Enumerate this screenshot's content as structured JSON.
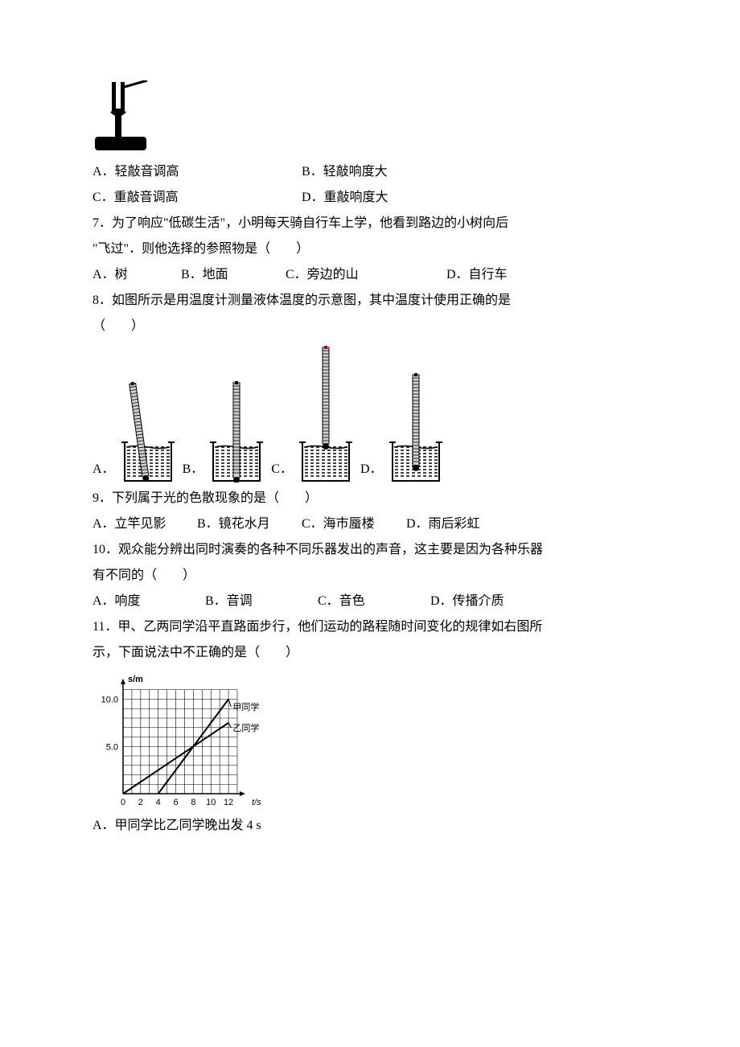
{
  "q6": {
    "options": {
      "a": "A．轻敲音调高",
      "b": "B．轻敲响度大",
      "c": "C．重敲音调高",
      "d": "D．重敲响度大"
    },
    "fork": {
      "prong_color": "#000000",
      "base_color": "#000000"
    }
  },
  "q7": {
    "stem1": "7．为了响应\"低碳生活\"，小明每天骑自行车上学，他看到路边的小树向后",
    "stem2": "\"飞过\"．则他选择的参照物是（　　）",
    "options": {
      "a": "A．树",
      "b": "B．地面",
      "c": "C．旁边的山",
      "d": "D．自行车"
    }
  },
  "q8": {
    "stem1": "8．如图所示是用温度计测量液体温度的示意图，其中温度计使用正确的是",
    "stem2": "（　　）",
    "labels": {
      "a": "A．",
      "b": "B．",
      "c": "C．",
      "d": "D．"
    },
    "thermo": {
      "beaker_stroke": "#000000",
      "liquid_fill": "#000000",
      "tube_fill": "#d0d0d0",
      "tick_color": "#000000",
      "bulb_color": "#000000",
      "red_tip": "#cc0000",
      "heights": {
        "a": 120,
        "b": 120,
        "c": 160,
        "d": 130
      },
      "beaker_w": 58,
      "beaker_h": 48
    }
  },
  "q9": {
    "stem": "9．下列属于光的色散现象的是（　　）",
    "options": {
      "a": "A．立竿见影",
      "b": "B．镜花水月",
      "c": "C．海市蜃楼",
      "d": "D．雨后彩虹"
    }
  },
  "q10": {
    "stem1": "10．观众能分辨出同时演奏的各种不同乐器发出的声音，这主要是因为各种乐器",
    "stem2": "有不同的（　　）",
    "options": {
      "a": "A．响度",
      "b": "B．音调",
      "c": "C．音色",
      "d": "D．传播介质"
    }
  },
  "q11": {
    "stem1": "11．甲、乙两同学沿平直路面步行，他们运动的路程随时间变化的规律如右图所",
    "stem2": "示，下面说法中不正确的是（　　）",
    "option_a": "A．甲同学比乙同学晚出发 4 s",
    "chart": {
      "type": "line",
      "xlabel": "t/s",
      "ylabel": "s/m",
      "xlim": [
        0,
        13
      ],
      "ylim": [
        0,
        12
      ],
      "xtick_labels": [
        "0",
        "2",
        "4",
        "6",
        "8",
        "10",
        "12"
      ],
      "xtick_pos": [
        0,
        2,
        4,
        6,
        8,
        10,
        12
      ],
      "ytick_labels": [
        "5.0",
        "10.0"
      ],
      "ytick_pos": [
        5,
        10
      ],
      "grid_step_x": 1,
      "grid_step_y": 1,
      "grid_color": "#000000",
      "axis_color": "#000000",
      "bg": "#ffffff",
      "series": [
        {
          "name": "甲同学",
          "label": "甲同学",
          "points": [
            [
              4,
              0
            ],
            [
              12,
              10
            ]
          ],
          "color": "#000000",
          "width": 2,
          "label_xy": [
            12.3,
            9.2
          ]
        },
        {
          "name": "乙同学",
          "label": "乙同学",
          "points": [
            [
              0,
              0
            ],
            [
              12,
              7.5
            ]
          ],
          "color": "#000000",
          "width": 2,
          "label_xy": [
            12.3,
            7.0
          ]
        }
      ],
      "label_fontsize": 11,
      "tick_fontsize": 11,
      "axis_label_fontweight": "bold"
    }
  }
}
